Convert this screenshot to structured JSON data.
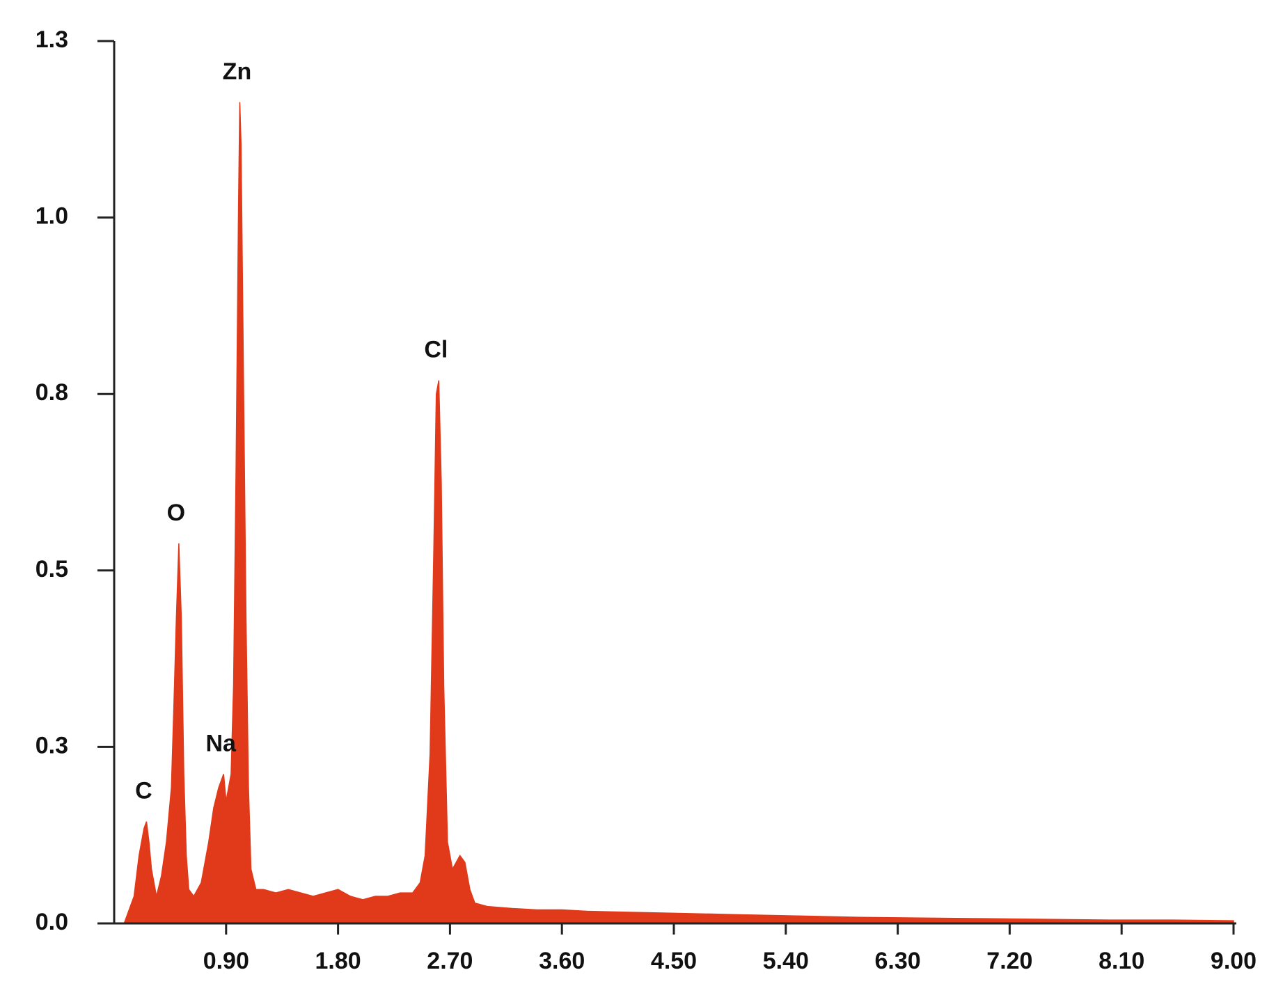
{
  "chart_data": {
    "type": "area",
    "color": "#e03a1a",
    "xlim": [
      0,
      9
    ],
    "ylim": [
      0,
      1.3
    ],
    "xticks": [
      {
        "value": 0.9,
        "label": "0.90"
      },
      {
        "value": 1.8,
        "label": "1.80"
      },
      {
        "value": 2.7,
        "label": "2.70"
      },
      {
        "value": 3.6,
        "label": "3.60"
      },
      {
        "value": 4.5,
        "label": "4.50"
      },
      {
        "value": 5.4,
        "label": "5.40"
      },
      {
        "value": 6.3,
        "label": "6.30"
      },
      {
        "value": 7.2,
        "label": "7.20"
      },
      {
        "value": 8.1,
        "label": "8.10"
      },
      {
        "value": 9,
        "label": "9.00"
      }
    ],
    "yticks": [
      {
        "value": 0,
        "label": "0.0"
      },
      {
        "value": 0.26,
        "label": "0.3"
      },
      {
        "value": 0.52,
        "label": "0.5"
      },
      {
        "value": 0.78,
        "label": "0.8"
      },
      {
        "value": 1.04,
        "label": "1.0"
      },
      1.3
    ],
    "x": [
      0.08,
      0.1,
      0.16,
      0.2,
      0.24,
      0.26,
      0.28,
      0.3,
      0.34,
      0.38,
      0.42,
      0.46,
      0.48,
      0.5,
      0.52,
      0.54,
      0.56,
      0.58,
      0.6,
      0.64,
      0.7,
      0.76,
      0.8,
      0.84,
      0.88,
      0.9,
      0.94,
      0.96,
      0.98,
      1.0,
      1.01,
      1.02,
      1.04,
      1.06,
      1.08,
      1.1,
      1.14,
      1.2,
      1.3,
      1.4,
      1.5,
      1.6,
      1.7,
      1.8,
      1.9,
      2.0,
      2.1,
      2.2,
      2.3,
      2.4,
      2.46,
      2.5,
      2.54,
      2.57,
      2.59,
      2.61,
      2.63,
      2.65,
      2.68,
      2.72,
      2.78,
      2.82,
      2.86,
      2.9,
      3.0,
      3.2,
      3.4,
      3.6,
      3.8,
      4.0,
      4.5,
      5.0,
      5.5,
      6.0,
      6.5,
      7.0,
      7.5,
      8.0,
      8.5,
      9.0
    ],
    "values": [
      0,
      0.01,
      0.04,
      0.1,
      0.14,
      0.15,
      0.12,
      0.08,
      0.04,
      0.07,
      0.12,
      0.2,
      0.32,
      0.45,
      0.56,
      0.45,
      0.22,
      0.1,
      0.05,
      0.04,
      0.06,
      0.12,
      0.17,
      0.2,
      0.22,
      0.18,
      0.22,
      0.35,
      0.67,
      1.06,
      1.21,
      1.15,
      0.8,
      0.45,
      0.2,
      0.08,
      0.05,
      0.05,
      0.045,
      0.05,
      0.045,
      0.04,
      0.045,
      0.05,
      0.04,
      0.035,
      0.04,
      0.04,
      0.045,
      0.045,
      0.06,
      0.1,
      0.25,
      0.55,
      0.78,
      0.8,
      0.65,
      0.35,
      0.12,
      0.08,
      0.1,
      0.09,
      0.05,
      0.03,
      0.025,
      0.022,
      0.02,
      0.02,
      0.018,
      0.017,
      0.015,
      0.013,
      0.011,
      0.009,
      0.008,
      0.007,
      0.006,
      0.005,
      0.005,
      0.004
    ],
    "annotations": [
      {
        "text": "C",
        "x": 0.26
      },
      {
        "text": "O",
        "x": 0.52
      },
      {
        "text": "Na",
        "x": 0.88
      },
      {
        "text": "Zn",
        "x": 1.01
      },
      {
        "text": "Cl",
        "x": 2.61
      }
    ]
  }
}
